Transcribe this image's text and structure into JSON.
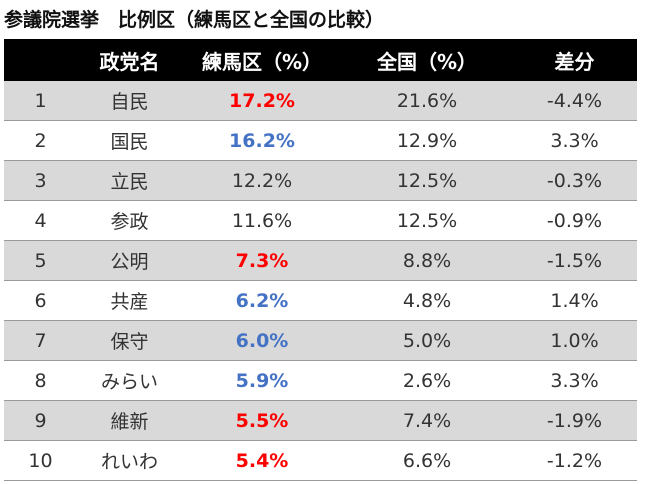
{
  "title": "参議院選挙　比例区（練馬区と全国の比較）",
  "table": {
    "headers": {
      "rank": "",
      "party": "政党名",
      "nerima": "練馬区（%）",
      "national": "全国（%）",
      "diff": "差分"
    },
    "rows": [
      {
        "rank": "1",
        "party": "自民",
        "nerima": "17.2%",
        "national": "21.6%",
        "diff": "-4.4%",
        "nerima_color": "red"
      },
      {
        "rank": "2",
        "party": "国民",
        "nerima": "16.2%",
        "national": "12.9%",
        "diff": "3.3%",
        "nerima_color": "blue"
      },
      {
        "rank": "3",
        "party": "立民",
        "nerima": "12.2%",
        "national": "12.5%",
        "diff": "-0.3%",
        "nerima_color": "plain"
      },
      {
        "rank": "4",
        "party": "参政",
        "nerima": "11.6%",
        "national": "12.5%",
        "diff": "-0.9%",
        "nerima_color": "plain"
      },
      {
        "rank": "5",
        "party": "公明",
        "nerima": "7.3%",
        "national": "8.8%",
        "diff": "-1.5%",
        "nerima_color": "red"
      },
      {
        "rank": "6",
        "party": "共産",
        "nerima": "6.2%",
        "national": "4.8%",
        "diff": "1.4%",
        "nerima_color": "blue"
      },
      {
        "rank": "7",
        "party": "保守",
        "nerima": "6.0%",
        "national": "5.0%",
        "diff": "1.0%",
        "nerima_color": "blue"
      },
      {
        "rank": "8",
        "party": "みらい",
        "nerima": "5.9%",
        "national": "2.6%",
        "diff": "3.3%",
        "nerima_color": "blue"
      },
      {
        "rank": "9",
        "party": "維新",
        "nerima": "5.5%",
        "national": "7.4%",
        "diff": "-1.9%",
        "nerima_color": "red"
      },
      {
        "rank": "10",
        "party": "れいわ",
        "nerima": "5.4%",
        "national": "6.6%",
        "diff": "-1.2%",
        "nerima_color": "red"
      }
    ]
  },
  "colors": {
    "header_bg": "#000000",
    "header_text": "#ffffff",
    "row_shade": "#d9d9d9",
    "red": "#ff0000",
    "blue": "#4472c4"
  }
}
